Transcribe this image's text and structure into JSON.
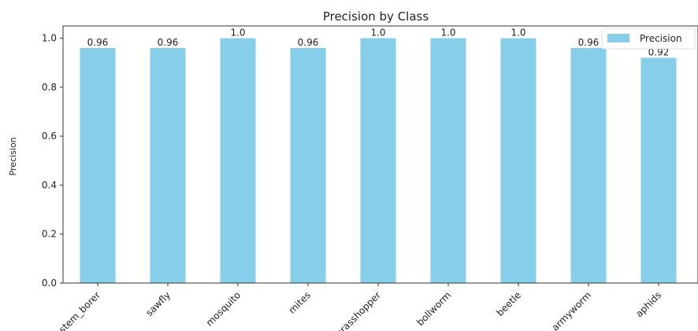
{
  "chart_data": {
    "type": "bar",
    "title": "Precision by Class",
    "xlabel": "",
    "ylabel": "Precision",
    "categories": [
      "stem_borer",
      "sawfly",
      "mosquito",
      "mites",
      "grasshopper",
      "bollworm",
      "beetle",
      "armyworm",
      "aphids"
    ],
    "values": [
      0.96,
      0.96,
      1.0,
      0.96,
      1.0,
      1.0,
      1.0,
      0.96,
      0.92
    ],
    "value_labels": [
      "0.96",
      "0.96",
      "1.0",
      "0.96",
      "1.0",
      "1.0",
      "1.0",
      "0.96",
      "0.92"
    ],
    "series": [
      {
        "name": "Precision",
        "values": [
          0.96,
          0.96,
          1.0,
          0.96,
          1.0,
          1.0,
          1.0,
          0.96,
          0.92
        ]
      }
    ],
    "ylim": [
      0,
      1.05
    ],
    "yticks": [
      "0.0",
      "0.2",
      "0.4",
      "0.6",
      "0.8",
      "1.0"
    ],
    "grid": false,
    "legend_position": "top-right",
    "bar_color": "#87CEEB"
  }
}
